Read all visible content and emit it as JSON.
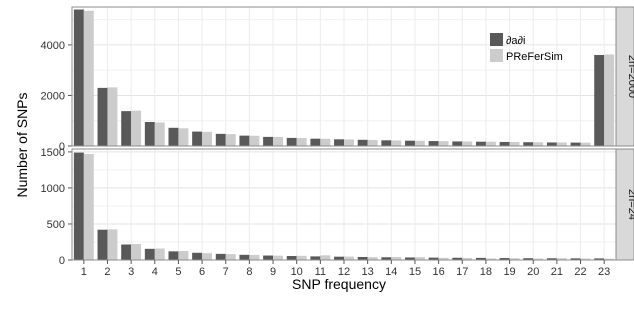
{
  "chart_data": {
    "type": "bar",
    "xlabel": "SNP frequency",
    "ylabel": "Number of SNPs",
    "categories": [
      "1",
      "2",
      "3",
      "4",
      "5",
      "6",
      "7",
      "8",
      "9",
      "10",
      "11",
      "12",
      "13",
      "14",
      "15",
      "16",
      "17",
      "18",
      "19",
      "20",
      "21",
      "22",
      "23"
    ],
    "legend": {
      "placement": "top-right inside top panel",
      "entries": [
        "∂a∂i",
        "PReFerSim"
      ]
    },
    "series_colors": [
      "#595959",
      "#cccccc"
    ],
    "grid": true,
    "panels": [
      {
        "strip_label": "2n=2000",
        "ylim": [
          0,
          5500
        ],
        "yticks": [
          0,
          2000,
          4000
        ],
        "series": [
          {
            "name": "∂a∂i",
            "values": [
              5400,
              2300,
              1380,
              950,
              720,
              570,
              480,
              410,
              360,
              320,
              290,
              265,
              245,
              225,
              210,
              195,
              180,
              170,
              160,
              150,
              140,
              135,
              3600
            ]
          },
          {
            "name": "PReFerSim",
            "values": [
              5350,
              2320,
              1400,
              930,
              700,
              560,
              470,
              405,
              355,
              315,
              285,
              260,
              240,
              220,
              205,
              190,
              178,
              168,
              158,
              148,
              140,
              133,
              3620
            ]
          }
        ]
      },
      {
        "strip_label": "2n=24",
        "ylim": [
          0,
          1540
        ],
        "yticks": [
          0,
          500,
          1000,
          1500
        ],
        "series": [
          {
            "name": "∂a∂i",
            "values": [
              1490,
              420,
              215,
              155,
              120,
              100,
              85,
              72,
              62,
              55,
              50,
              46,
              42,
              38,
              35,
              33,
              31,
              29,
              27,
              25,
              24,
              23,
              22
            ]
          },
          {
            "name": "PReFerSim",
            "values": [
              1470,
              425,
              222,
              160,
              125,
              95,
              82,
              70,
              60,
              58,
              65,
              48,
              40,
              42,
              40,
              30,
              28,
              22,
              25,
              20,
              25,
              20,
              18
            ]
          }
        ]
      }
    ]
  }
}
